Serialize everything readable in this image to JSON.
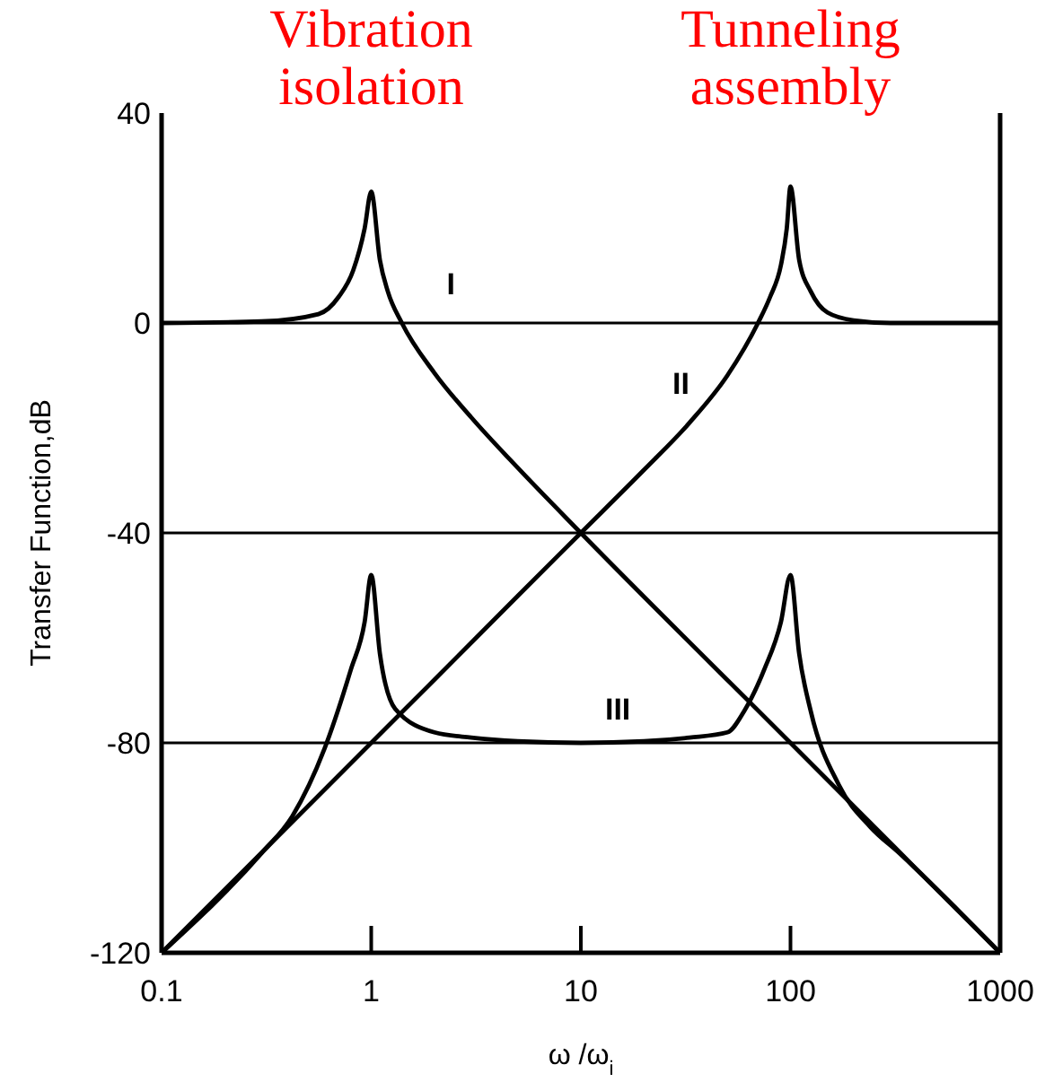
{
  "chart_data": {
    "type": "line",
    "ylabel": "Transfer Function,dB",
    "xlabel": "ω /ω$_{i}$",
    "log": "x",
    "xlim": [
      0.1,
      1000
    ],
    "xticks": [
      0.1,
      1,
      10,
      100,
      1000
    ],
    "ylim": [
      -120,
      40
    ],
    "yticks": [
      -120,
      -80,
      -40,
      0,
      40
    ],
    "grid": "y",
    "marker": "none",
    "line_style": "solid",
    "annotations": [
      "Vibration isolation",
      "Tunneling assembly"
    ],
    "series": [
      {
        "name": "I",
        "color": "#000000",
        "x": [
          0.1,
          0.3,
          0.56,
          0.7,
          0.82,
          0.93,
          1,
          1.1,
          1.2,
          1.4,
          2,
          3,
          5,
          10,
          100,
          1000
        ],
        "values": [
          0,
          0.3,
          1.7,
          5,
          10,
          18,
          25,
          12,
          6,
          0,
          -9.5,
          -18,
          -27.6,
          -40,
          -80,
          -120
        ]
      },
      {
        "name": "II",
        "color": "#000000",
        "x": [
          0.1,
          1,
          2,
          5,
          10,
          20,
          33,
          50,
          70,
          80,
          90,
          96,
          100,
          110,
          125,
          150,
          200,
          300,
          1000
        ],
        "values": [
          -120,
          -80,
          -68,
          -52,
          -40,
          -28,
          -19,
          -10,
          0,
          5,
          11,
          18,
          26,
          12,
          6,
          2,
          0.5,
          0,
          0
        ]
      },
      {
        "name": "III",
        "color": "#000000",
        "x": [
          0.1,
          0.3,
          0.42,
          0.6,
          0.8,
          0.93,
          1,
          1.1,
          1.3,
          2,
          3,
          5,
          10,
          20,
          33,
          50,
          60,
          75,
          90,
          100,
          110,
          125,
          170,
          240,
          330,
          1000
        ],
        "values": [
          -120,
          -101,
          -94,
          -81,
          -66,
          -57,
          -48,
          -63,
          -73.5,
          -78,
          -79,
          -79.7,
          -80,
          -79.7,
          -79,
          -78,
          -74,
          -66,
          -57,
          -48,
          -63,
          -74,
          -88,
          -96,
          -101,
          -120
        ]
      }
    ]
  }
}
